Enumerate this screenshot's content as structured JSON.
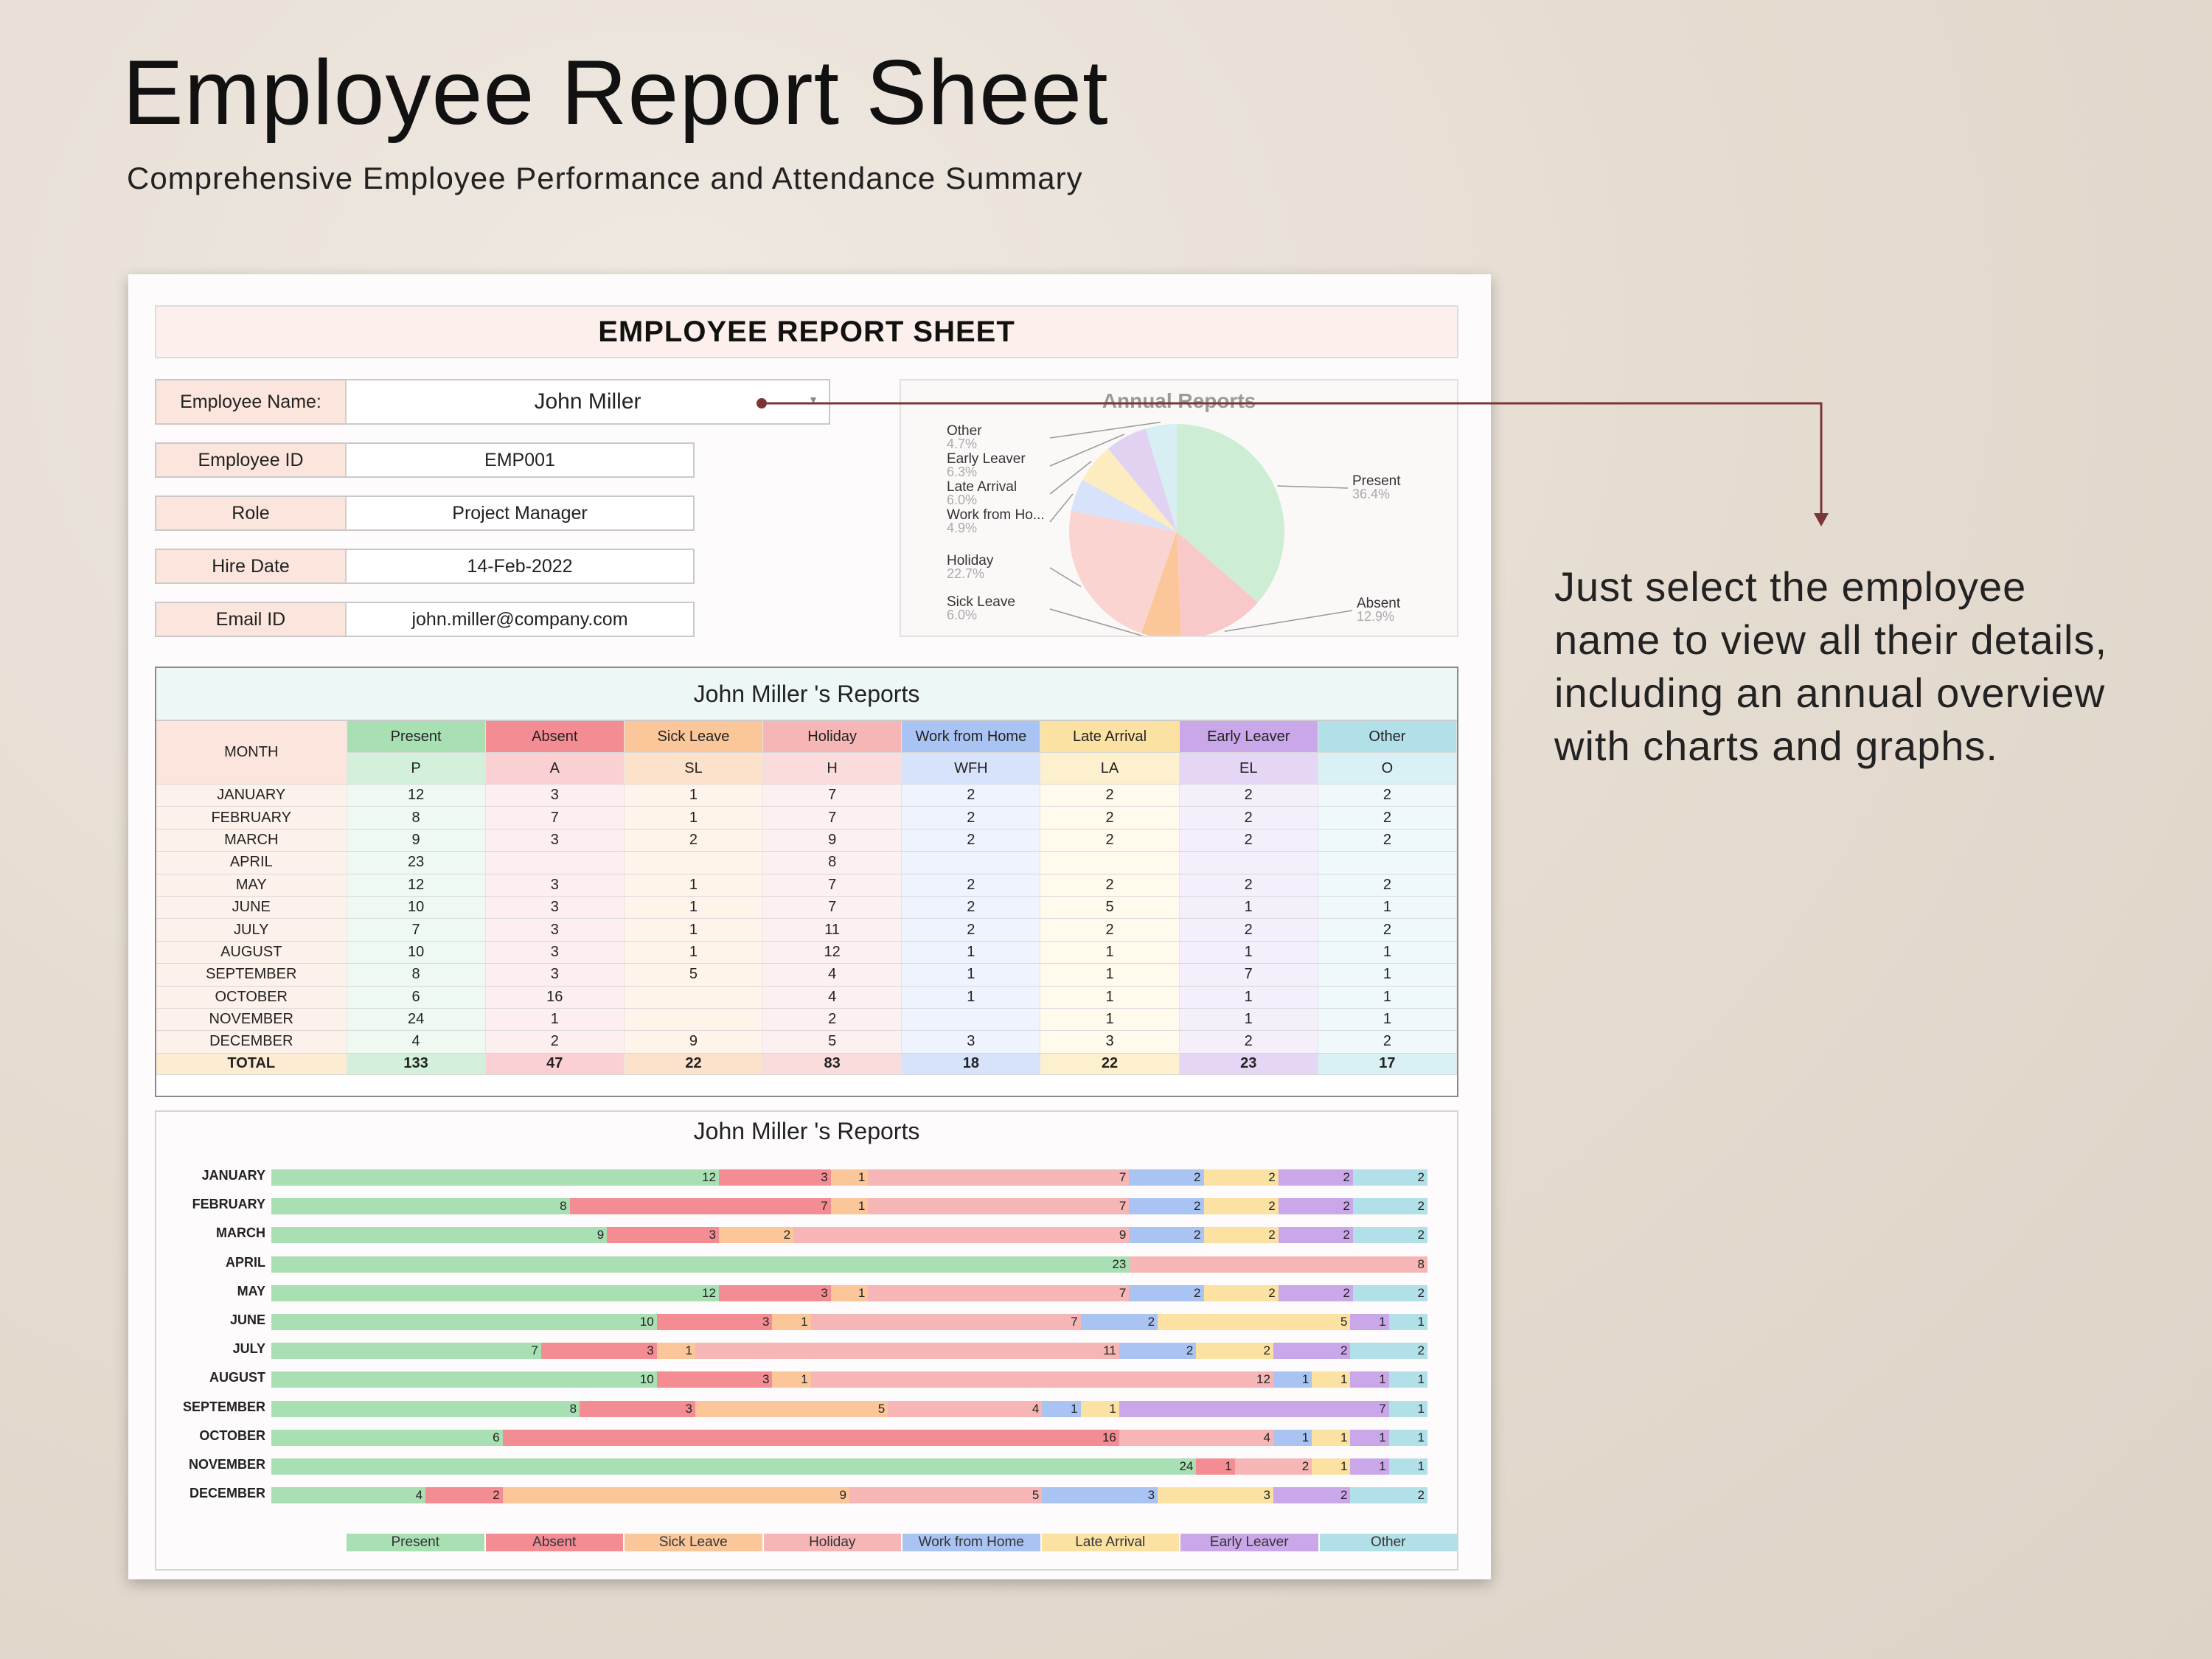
{
  "header": {
    "title": "Employee Report Sheet",
    "subtitle": "Comprehensive Employee Performance and Attendance Summary"
  },
  "sheet": {
    "title": "EMPLOYEE REPORT SHEET",
    "employee": {
      "name_label": "Employee Name:",
      "name_value": "John Miller",
      "fields": [
        {
          "label": "Employee ID",
          "value": "EMP001"
        },
        {
          "label": "Role",
          "value": "Project Manager"
        },
        {
          "label": "Hire Date",
          "value": "14-Feb-2022"
        },
        {
          "label": "Email ID",
          "value": "john.miller@company.com"
        }
      ]
    },
    "pie": {
      "title": "Annual Reports",
      "slices": [
        {
          "name": "Present",
          "pct": "36.4%",
          "value": 36.4,
          "color": "#cdeed5"
        },
        {
          "name": "Absent",
          "pct": "12.9%",
          "value": 12.9,
          "color": "#f9c9ca"
        },
        {
          "name": "Sick Leave",
          "pct": "6.0%",
          "value": 6.0,
          "color": "#fbc79a"
        },
        {
          "name": "Holiday",
          "pct": "22.7%",
          "value": 22.7,
          "color": "#fad4d1"
        },
        {
          "name": "Work from Ho...",
          "pct": "4.9%",
          "value": 4.9,
          "color": "#d8e2fa"
        },
        {
          "name": "Late Arrival",
          "pct": "6.0%",
          "value": 6.0,
          "color": "#fcecc0"
        },
        {
          "name": "Early Leaver",
          "pct": "6.3%",
          "value": 6.3,
          "color": "#e2d2f2"
        },
        {
          "name": "Other",
          "pct": "4.7%",
          "value": 4.7,
          "color": "#d7eef2"
        }
      ]
    },
    "table": {
      "title": "John Miller 's Reports",
      "month_header": "MONTH",
      "columns": [
        {
          "name": "Present",
          "code": "P",
          "head": "#a8e0b4",
          "sub": "#d3f0da",
          "cell": "#eef9f1"
        },
        {
          "name": "Absent",
          "code": "A",
          "head": "#f38c93",
          "sub": "#fbd0d3",
          "cell": "#fdeef0"
        },
        {
          "name": "Sick Leave",
          "code": "SL",
          "head": "#fbc79a",
          "sub": "#fde2cb",
          "cell": "#fff4ea"
        },
        {
          "name": "Holiday",
          "code": "H",
          "head": "#f6b6b6",
          "sub": "#fbdcdc",
          "cell": "#fdf0f0"
        },
        {
          "name": "Work from Home",
          "code": "WFH",
          "head": "#a9c3f3",
          "sub": "#d6e3fb",
          "cell": "#eef3fd"
        },
        {
          "name": "Late Arrival",
          "code": "LA",
          "head": "#fbe2a2",
          "sub": "#fdf0cf",
          "cell": "#fffaec"
        },
        {
          "name": "Early Leaver",
          "code": "EL",
          "head": "#c9a7e8",
          "sub": "#e6d6f5",
          "cell": "#f5eefb"
        },
        {
          "name": "Other",
          "code": "O",
          "head": "#b2e0e8",
          "sub": "#d9f0f4",
          "cell": "#eff9fb"
        }
      ],
      "rows": [
        {
          "month": "JANUARY",
          "values": [
            "12",
            "3",
            "1",
            "7",
            "2",
            "2",
            "2",
            "2"
          ]
        },
        {
          "month": "FEBRUARY",
          "values": [
            "8",
            "7",
            "1",
            "7",
            "2",
            "2",
            "2",
            "2"
          ]
        },
        {
          "month": "MARCH",
          "values": [
            "9",
            "3",
            "2",
            "9",
            "2",
            "2",
            "2",
            "2"
          ]
        },
        {
          "month": "APRIL",
          "values": [
            "23",
            "",
            "",
            "8",
            "",
            "",
            "",
            ""
          ]
        },
        {
          "month": "MAY",
          "values": [
            "12",
            "3",
            "1",
            "7",
            "2",
            "2",
            "2",
            "2"
          ]
        },
        {
          "month": "JUNE",
          "values": [
            "10",
            "3",
            "1",
            "7",
            "2",
            "5",
            "1",
            "1"
          ]
        },
        {
          "month": "JULY",
          "values": [
            "7",
            "3",
            "1",
            "11",
            "2",
            "2",
            "2",
            "2"
          ]
        },
        {
          "month": "AUGUST",
          "values": [
            "10",
            "3",
            "1",
            "12",
            "1",
            "1",
            "1",
            "1"
          ]
        },
        {
          "month": "SEPTEMBER",
          "values": [
            "8",
            "3",
            "5",
            "4",
            "1",
            "1",
            "7",
            "1"
          ]
        },
        {
          "month": "OCTOBER",
          "values": [
            "6",
            "16",
            "",
            "4",
            "1",
            "1",
            "1",
            "1"
          ]
        },
        {
          "month": "NOVEMBER",
          "values": [
            "24",
            "1",
            "",
            "2",
            "",
            "1",
            "1",
            "1"
          ]
        },
        {
          "month": "DECEMBER",
          "values": [
            "4",
            "2",
            "9",
            "5",
            "3",
            "3",
            "2",
            "2"
          ]
        }
      ],
      "total": {
        "label": "TOTAL",
        "values": [
          "133",
          "47",
          "22",
          "83",
          "18",
          "22",
          "23",
          "17"
        ]
      }
    },
    "bar_chart": {
      "title": "John Miller 's Reports"
    }
  },
  "callout": {
    "text": "Just select the employee name to view all their details, including an annual overview with charts and graphs."
  },
  "chart_data": [
    {
      "type": "pie",
      "title": "Annual Reports",
      "categories": [
        "Present",
        "Absent",
        "Sick Leave",
        "Holiday",
        "Work from Ho...",
        "Late Arrival",
        "Early Leaver",
        "Other"
      ],
      "values": [
        36.4,
        12.9,
        6.0,
        22.7,
        4.9,
        6.0,
        6.3,
        4.7
      ]
    },
    {
      "type": "bar",
      "stacked": true,
      "orientation": "horizontal",
      "title": "John Miller 's Reports",
      "categories": [
        "JANUARY",
        "FEBRUARY",
        "MARCH",
        "APRIL",
        "MAY",
        "JUNE",
        "JULY",
        "AUGUST",
        "SEPTEMBER",
        "OCTOBER",
        "NOVEMBER",
        "DECEMBER"
      ],
      "legend": "bottom",
      "series": [
        {
          "name": "Present",
          "color": "#a8e0b4",
          "values": [
            12,
            8,
            9,
            23,
            12,
            10,
            7,
            10,
            8,
            6,
            24,
            4
          ]
        },
        {
          "name": "Absent",
          "color": "#f38c93",
          "values": [
            3,
            7,
            3,
            0,
            3,
            3,
            3,
            3,
            3,
            16,
            1,
            2
          ]
        },
        {
          "name": "Sick Leave",
          "color": "#fbc79a",
          "values": [
            1,
            1,
            2,
            0,
            1,
            1,
            1,
            1,
            5,
            0,
            0,
            9
          ]
        },
        {
          "name": "Holiday",
          "color": "#f6b6b6",
          "values": [
            7,
            7,
            9,
            8,
            7,
            7,
            11,
            12,
            4,
            4,
            2,
            5
          ]
        },
        {
          "name": "Work from Home",
          "color": "#a9c3f3",
          "values": [
            2,
            2,
            2,
            0,
            2,
            2,
            2,
            1,
            1,
            1,
            0,
            3
          ]
        },
        {
          "name": "Late Arrival",
          "color": "#fbe2a2",
          "values": [
            2,
            2,
            2,
            0,
            2,
            5,
            2,
            1,
            1,
            1,
            1,
            3
          ]
        },
        {
          "name": "Early Leaver",
          "color": "#c9a7e8",
          "values": [
            2,
            2,
            2,
            0,
            2,
            1,
            2,
            1,
            7,
            1,
            1,
            2
          ]
        },
        {
          "name": "Other",
          "color": "#b2e0e8",
          "values": [
            2,
            2,
            2,
            0,
            2,
            1,
            2,
            1,
            1,
            1,
            1,
            2
          ]
        }
      ]
    }
  ]
}
